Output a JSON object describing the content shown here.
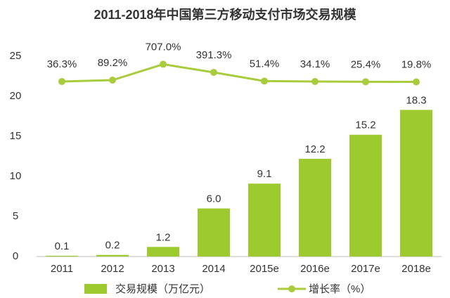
{
  "chart_data": {
    "type": "bar",
    "title": "2011-2018年中国第三方移动支付市场交易规模",
    "categories": [
      "2011",
      "2012",
      "2013",
      "2014",
      "2015e",
      "2016e",
      "2017e",
      "2018e"
    ],
    "ylim": [
      0,
      25
    ],
    "yticks": [
      0,
      5,
      10,
      15,
      20,
      25
    ],
    "y2lim": [
      -6780,
      1020
    ],
    "grid": false,
    "series": [
      {
        "name": "交易规模（万亿元）",
        "type": "bar",
        "color": "#9dcb2f",
        "values": [
          0.1,
          0.2,
          1.2,
          6.0,
          9.1,
          12.2,
          15.2,
          18.3
        ],
        "value_labels": [
          "0.1",
          "0.2",
          "1.2",
          "6.0",
          "9.1",
          "12.2",
          "15.2",
          "18.3"
        ]
      },
      {
        "name": "增长率（%）",
        "type": "line",
        "axis": "y2",
        "color": "#a9cc3c",
        "values": [
          36.3,
          89.2,
          707.0,
          391.3,
          51.4,
          34.1,
          25.4,
          19.8
        ],
        "value_labels": [
          "36.3%",
          "89.2%",
          "707.0%",
          "391.3%",
          "51.4%",
          "34.1%",
          "25.4%",
          "19.8%"
        ]
      }
    ]
  }
}
